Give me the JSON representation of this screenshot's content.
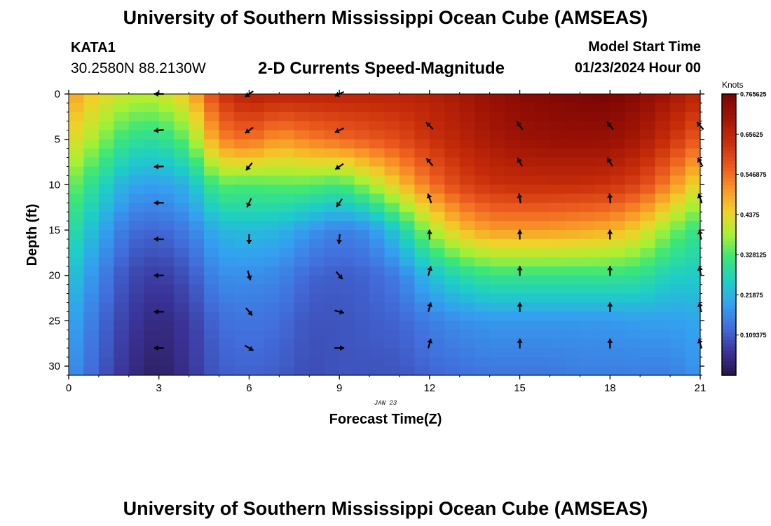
{
  "header": {
    "title": "University of Southern Mississippi Ocean Cube (AMSEAS)",
    "station_id": "KATA1",
    "coords": "30.2580N  88.2130W",
    "chart_title": "2-D Currents Speed-Magnitude",
    "model_start_label": "Model Start Time",
    "model_start_value": "01/23/2024 Hour 00"
  },
  "footer": {
    "title": "University of Southern Mississippi Ocean Cube (AMSEAS)"
  },
  "chart_data": {
    "type": "heatmap",
    "title": "2-D Currents Speed-Magnitude",
    "xlabel": "Forecast Time(Z)",
    "ylabel": "Depth (ft)",
    "x_sublabel": "JAN 23",
    "xlim": [
      0,
      21
    ],
    "ylim": [
      0,
      31
    ],
    "y_inverted": true,
    "xticks": [
      0,
      3,
      6,
      9,
      12,
      15,
      18,
      21
    ],
    "yticks": [
      0,
      5,
      10,
      15,
      20,
      25,
      30
    ],
    "colorbar": {
      "label": "Knots",
      "range": [
        0,
        0.765625
      ],
      "ticks": [
        "0.765625",
        "0.65625",
        "0.546875",
        "0.4375",
        "0.328125",
        "0.21875",
        "0.109375"
      ],
      "tick_values": [
        0.765625,
        0.65625,
        0.546875,
        0.4375,
        0.328125,
        0.21875,
        0.109375
      ]
    },
    "speed_profiles": [
      {
        "hour": 0,
        "depths": [
          0,
          5,
          10,
          15,
          20,
          25,
          31
        ],
        "speed": [
          0.5,
          0.44,
          0.36,
          0.3,
          0.25,
          0.21,
          0.18
        ]
      },
      {
        "hour": 1,
        "depths": [
          0,
          5,
          10,
          15,
          20,
          25,
          31
        ],
        "speed": [
          0.44,
          0.37,
          0.28,
          0.21,
          0.16,
          0.13,
          0.11
        ]
      },
      {
        "hour": 2,
        "depths": [
          0,
          5,
          10,
          15,
          20,
          25,
          31
        ],
        "speed": [
          0.4,
          0.3,
          0.2,
          0.13,
          0.09,
          0.07,
          0.05
        ]
      },
      {
        "hour": 3,
        "depths": [
          0,
          5,
          10,
          15,
          20,
          25,
          31
        ],
        "speed": [
          0.4,
          0.29,
          0.19,
          0.12,
          0.07,
          0.04,
          0.02
        ]
      },
      {
        "hour": 4,
        "depths": [
          0,
          5,
          10,
          15,
          20,
          25,
          31
        ],
        "speed": [
          0.46,
          0.35,
          0.22,
          0.15,
          0.1,
          0.07,
          0.06
        ]
      },
      {
        "hour": 5,
        "depths": [
          0,
          5,
          10,
          15,
          20,
          25,
          31
        ],
        "speed": [
          0.62,
          0.52,
          0.34,
          0.22,
          0.17,
          0.13,
          0.11
        ]
      },
      {
        "hour": 6,
        "depths": [
          0,
          5,
          10,
          15,
          20,
          25,
          31
        ],
        "speed": [
          0.67,
          0.55,
          0.33,
          0.23,
          0.17,
          0.14,
          0.12
        ]
      },
      {
        "hour": 7,
        "depths": [
          0,
          5,
          10,
          15,
          20,
          25,
          31
        ],
        "speed": [
          0.66,
          0.5,
          0.34,
          0.22,
          0.16,
          0.13,
          0.11
        ]
      },
      {
        "hour": 8,
        "depths": [
          0,
          5,
          10,
          15,
          20,
          25,
          31
        ],
        "speed": [
          0.66,
          0.53,
          0.34,
          0.18,
          0.12,
          0.1,
          0.09
        ]
      },
      {
        "hour": 9,
        "depths": [
          0,
          5,
          10,
          15,
          20,
          25,
          31
        ],
        "speed": [
          0.66,
          0.55,
          0.32,
          0.15,
          0.11,
          0.1,
          0.1
        ]
      },
      {
        "hour": 10,
        "depths": [
          0,
          5,
          10,
          15,
          20,
          25,
          31
        ],
        "speed": [
          0.66,
          0.57,
          0.38,
          0.17,
          0.12,
          0.11,
          0.1
        ]
      },
      {
        "hour": 11,
        "depths": [
          0,
          5,
          10,
          15,
          20,
          25,
          31
        ],
        "speed": [
          0.66,
          0.59,
          0.46,
          0.26,
          0.15,
          0.12,
          0.1
        ]
      },
      {
        "hour": 12,
        "depths": [
          0,
          5,
          10,
          15,
          20,
          25,
          31
        ],
        "speed": [
          0.67,
          0.63,
          0.54,
          0.38,
          0.23,
          0.15,
          0.12
        ]
      },
      {
        "hour": 13,
        "depths": [
          0,
          5,
          10,
          15,
          20,
          25,
          31
        ],
        "speed": [
          0.69,
          0.66,
          0.6,
          0.46,
          0.28,
          0.17,
          0.13
        ]
      },
      {
        "hour": 14,
        "depths": [
          0,
          5,
          10,
          15,
          20,
          25,
          31
        ],
        "speed": [
          0.72,
          0.69,
          0.63,
          0.5,
          0.31,
          0.18,
          0.14
        ]
      },
      {
        "hour": 15,
        "depths": [
          0,
          5,
          10,
          15,
          20,
          25,
          31
        ],
        "speed": [
          0.74,
          0.71,
          0.64,
          0.5,
          0.31,
          0.18,
          0.14
        ]
      },
      {
        "hour": 16,
        "depths": [
          0,
          5,
          10,
          15,
          20,
          25,
          31
        ],
        "speed": [
          0.75,
          0.72,
          0.64,
          0.5,
          0.31,
          0.18,
          0.14
        ]
      },
      {
        "hour": 17,
        "depths": [
          0,
          5,
          10,
          15,
          20,
          25,
          31
        ],
        "speed": [
          0.76,
          0.72,
          0.64,
          0.49,
          0.31,
          0.18,
          0.15
        ]
      },
      {
        "hour": 18,
        "depths": [
          0,
          5,
          10,
          15,
          20,
          25,
          31
        ],
        "speed": [
          0.765,
          0.72,
          0.63,
          0.48,
          0.31,
          0.18,
          0.15
        ]
      },
      {
        "hour": 19,
        "depths": [
          0,
          5,
          10,
          15,
          20,
          25,
          31
        ],
        "speed": [
          0.74,
          0.69,
          0.6,
          0.44,
          0.3,
          0.19,
          0.15
        ]
      },
      {
        "hour": 20,
        "depths": [
          0,
          5,
          10,
          15,
          20,
          25,
          31
        ],
        "speed": [
          0.7,
          0.63,
          0.52,
          0.36,
          0.26,
          0.19,
          0.15
        ]
      },
      {
        "hour": 21,
        "depths": [
          0,
          5,
          10,
          15,
          20,
          25,
          31
        ],
        "speed": [
          0.65,
          0.56,
          0.42,
          0.3,
          0.25,
          0.2,
          0.18
        ]
      }
    ],
    "vectors": [
      {
        "hour": 3,
        "depths": [
          0,
          4,
          8,
          12,
          16,
          20,
          24,
          28
        ],
        "direction_deg": [
          270,
          265,
          268,
          270,
          272,
          270,
          270,
          270
        ]
      },
      {
        "hour": 6,
        "depths": [
          0,
          4,
          8,
          12,
          16,
          20,
          24,
          28
        ],
        "direction_deg": [
          235,
          235,
          220,
          205,
          180,
          165,
          140,
          120
        ]
      },
      {
        "hour": 9,
        "depths": [
          0,
          4,
          8,
          12,
          16,
          20,
          24,
          28
        ],
        "direction_deg": [
          245,
          245,
          235,
          215,
          185,
          140,
          105,
          90
        ]
      },
      {
        "hour": 12,
        "depths": [
          3.5,
          7.5,
          11.5,
          15.5,
          19.5,
          23.5,
          27.5
        ],
        "direction_deg": [
          315,
          320,
          340,
          0,
          15,
          15,
          15
        ]
      },
      {
        "hour": 15,
        "depths": [
          3.5,
          7.5,
          11.5,
          15.5,
          19.5,
          23.5,
          27.5
        ],
        "direction_deg": [
          325,
          330,
          350,
          0,
          0,
          0,
          0
        ]
      },
      {
        "hour": 18,
        "depths": [
          3.5,
          7.5,
          11.5,
          15.5,
          19.5,
          23.5,
          27.5
        ],
        "direction_deg": [
          320,
          330,
          355,
          0,
          0,
          0,
          0
        ]
      },
      {
        "hour": 21,
        "depths": [
          3.5,
          7.5,
          11.5,
          15.5,
          19.5,
          23.5,
          27.5
        ],
        "direction_deg": [
          320,
          330,
          340,
          350,
          350,
          350,
          345
        ]
      }
    ]
  }
}
